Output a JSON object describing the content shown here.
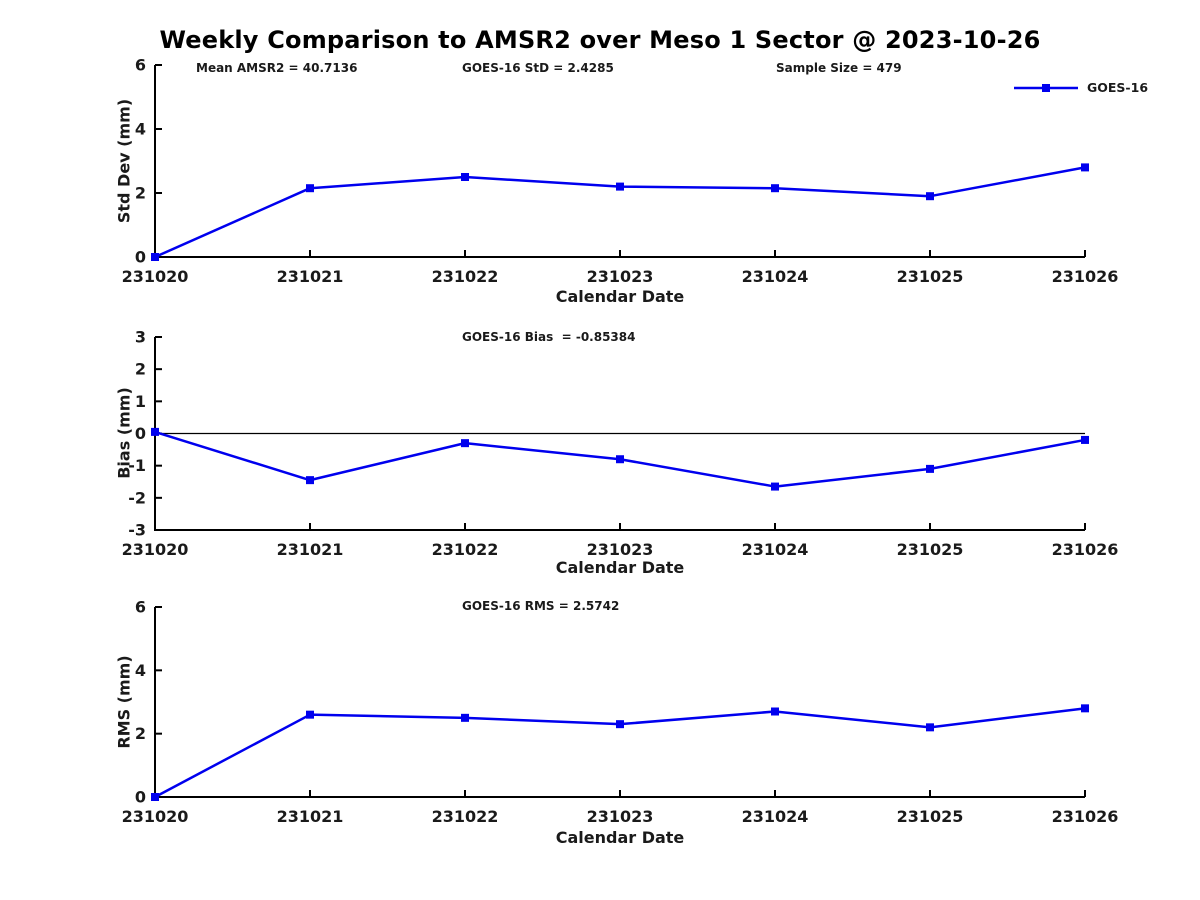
{
  "title": "Weekly Comparison to AMSR2 over Meso 1 Sector @ 2023-10-26",
  "x_axis_label": "Calendar Date",
  "legend": {
    "label": "GOES-16"
  },
  "colors": {
    "line": "#0000EE",
    "axis": "#000000",
    "text": "#1a1a1a"
  },
  "chart_data": [
    {
      "type": "line",
      "ylabel": "Std Dev (mm)",
      "xlabel": "Calendar Date",
      "ylim": [
        0,
        6
      ],
      "yticks": [
        0,
        2,
        4,
        6
      ],
      "grid": false,
      "legend_position": "upper-right-no-box",
      "categories": [
        "231020",
        "231021",
        "231022",
        "231023",
        "231024",
        "231025",
        "231026"
      ],
      "annotations": [
        "Mean AMSR2 = 40.7136",
        "GOES-16 StD = 2.4285",
        "Sample Size = 479"
      ],
      "series": [
        {
          "name": "GOES-16",
          "marker": "square",
          "values": [
            0,
            2.15,
            2.5,
            2.2,
            2.15,
            1.9,
            2.8
          ]
        }
      ]
    },
    {
      "type": "line",
      "ylabel": "Bias (mm)",
      "xlabel": "Calendar Date",
      "ylim": [
        -3,
        3
      ],
      "yticks": [
        -3,
        -2,
        -1,
        0,
        1,
        2,
        3
      ],
      "zero_line": true,
      "grid": false,
      "categories": [
        "231020",
        "231021",
        "231022",
        "231023",
        "231024",
        "231025",
        "231026"
      ],
      "annotations": [
        "GOES-16 Bias  = -0.85384"
      ],
      "series": [
        {
          "name": "GOES-16",
          "marker": "square",
          "values": [
            0.05,
            -1.45,
            -0.3,
            -0.8,
            -1.65,
            -1.1,
            -0.2
          ]
        }
      ]
    },
    {
      "type": "line",
      "ylabel": "RMS (mm)",
      "xlabel": "Calendar Date",
      "ylim": [
        0,
        6
      ],
      "yticks": [
        0,
        2,
        4,
        6
      ],
      "grid": false,
      "categories": [
        "231020",
        "231021",
        "231022",
        "231023",
        "231024",
        "231025",
        "231026"
      ],
      "annotations": [
        "GOES-16 RMS = 2.5742"
      ],
      "series": [
        {
          "name": "GOES-16",
          "marker": "square",
          "values": [
            0,
            2.6,
            2.5,
            2.3,
            2.7,
            2.2,
            2.8
          ]
        }
      ]
    }
  ]
}
